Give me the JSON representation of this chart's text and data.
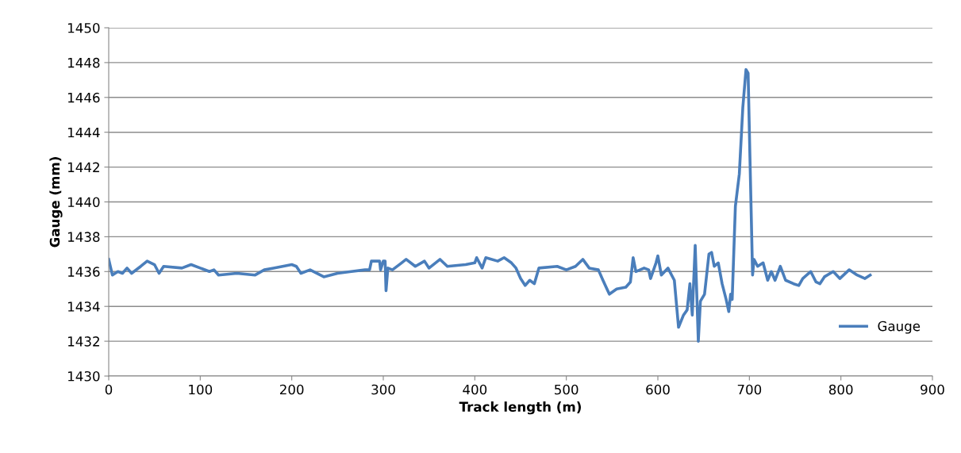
{
  "chart_data": {
    "type": "line",
    "xlabel": "Track length (m)",
    "ylabel": "Gauge (mm)",
    "xlim": [
      0,
      900
    ],
    "xticks": [
      0,
      100,
      200,
      300,
      400,
      500,
      600,
      700,
      800,
      900
    ],
    "ylim": [
      1430,
      1450
    ],
    "yticks": [
      1430,
      1432,
      1434,
      1436,
      1438,
      1440,
      1442,
      1444,
      1446,
      1448,
      1450
    ],
    "grid": "y",
    "legend": "right",
    "marker": "none",
    "line_style": "solid",
    "series": [
      {
        "name": "Gauge",
        "color": "#4a7ebb",
        "x": [
          0,
          4,
          10,
          15,
          20,
          25,
          35,
          42,
          50,
          55,
          60,
          80,
          90,
          100,
          110,
          115,
          120,
          140,
          160,
          170,
          180,
          200,
          205,
          210,
          220,
          235,
          250,
          265,
          280,
          285,
          287,
          296,
          297,
          300,
          302,
          303,
          305,
          310,
          320,
          325,
          335,
          345,
          350,
          362,
          370,
          390,
          400,
          402,
          408,
          412,
          425,
          432,
          440,
          445,
          450,
          455,
          460,
          465,
          470,
          490,
          500,
          510,
          518,
          525,
          535,
          540,
          547,
          555,
          565,
          570,
          573,
          576,
          585,
          590,
          592,
          598,
          600,
          603.8,
          611,
          618,
          622.6,
          628,
          632,
          635,
          637.6,
          640.8,
          644.2,
          646.5,
          651,
          655.8,
          658.7,
          661.6,
          666,
          670.2,
          674.6,
          677.5,
          679.5,
          681.2,
          684.7,
          689,
          692.8,
          696.3,
          698.6,
          700.6,
          703.5,
          705,
          709,
          715,
          720,
          724,
          728,
          733.8,
          739.6,
          748.3,
          754,
          758.3,
          767,
          772.8,
          777,
          782,
          791.6,
          798.8,
          809,
          817.7,
          826.3,
          832
        ],
        "values": [
          1436.7,
          1435.8,
          1436.0,
          1435.9,
          1436.2,
          1435.9,
          1436.3,
          1436.6,
          1436.4,
          1435.9,
          1436.3,
          1436.2,
          1436.4,
          1436.2,
          1436.0,
          1436.1,
          1435.8,
          1435.9,
          1435.8,
          1436.1,
          1436.2,
          1436.4,
          1436.3,
          1435.9,
          1436.1,
          1435.7,
          1435.9,
          1436.0,
          1436.1,
          1436.1,
          1436.6,
          1436.6,
          1436.1,
          1436.6,
          1436.6,
          1434.9,
          1436.2,
          1436.1,
          1436.5,
          1436.7,
          1436.3,
          1436.6,
          1436.2,
          1436.7,
          1436.3,
          1436.4,
          1436.5,
          1436.8,
          1436.2,
          1436.8,
          1436.6,
          1436.8,
          1436.5,
          1436.2,
          1435.6,
          1435.2,
          1435.5,
          1435.3,
          1436.2,
          1436.3,
          1436.1,
          1436.3,
          1436.7,
          1436.2,
          1436.1,
          1435.5,
          1434.7,
          1435.0,
          1435.1,
          1435.4,
          1436.8,
          1436.0,
          1436.2,
          1436.1,
          1435.6,
          1436.5,
          1436.9,
          1435.8,
          1436.2,
          1435.5,
          1432.8,
          1433.5,
          1433.8,
          1435.3,
          1433.5,
          1437.5,
          1432.0,
          1434.3,
          1434.7,
          1437.0,
          1437.1,
          1436.3,
          1436.5,
          1435.3,
          1434.4,
          1433.7,
          1434.7,
          1434.4,
          1439.75,
          1441.6,
          1445.4,
          1447.6,
          1447.4,
          1442.6,
          1435.8,
          1436.7,
          1436.3,
          1436.5,
          1435.5,
          1436.0,
          1435.5,
          1436.3,
          1435.5,
          1435.3,
          1435.2,
          1435.6,
          1436.0,
          1435.4,
          1435.3,
          1435.7,
          1436.0,
          1435.6,
          1436.1,
          1435.8,
          1435.6,
          1435.8
        ]
      }
    ]
  }
}
